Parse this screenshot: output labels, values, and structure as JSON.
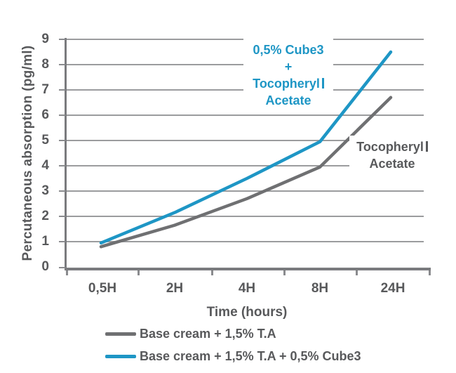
{
  "chart_data": {
    "type": "line",
    "title": "",
    "xlabel": "Time (hours)",
    "ylabel": "Percutaneous absorption (pg/ml)",
    "categories": [
      "0,5H",
      "2H",
      "4H",
      "8H",
      "24H"
    ],
    "yticks": [
      "9",
      "8",
      "7",
      "6",
      "5",
      "4",
      "3",
      "2",
      "1",
      "0"
    ],
    "ylim": [
      0,
      9
    ],
    "grid": true,
    "legend_position": "bottom",
    "series": [
      {
        "id": "ta",
        "name": "Base cream + 1,5% T.A",
        "color": "#6F7072",
        "values": [
          0.8,
          1.65,
          2.7,
          3.95,
          6.7
        ]
      },
      {
        "id": "cube",
        "name": "Base cream + 1,5% T.A + 0,5% Cube3",
        "color": "#1E96C5",
        "values": [
          0.95,
          2.15,
          3.5,
          4.95,
          8.5
        ]
      }
    ],
    "annotations": [
      {
        "id": "cube-annotation",
        "color": "#1E96C5",
        "lines": [
          "0,5% Cube3",
          "+",
          "Tocopheryl",
          "Acetate"
        ]
      },
      {
        "id": "ta-annotation",
        "color": "#58595B",
        "lines": [
          "Tocopheryl",
          "Acetate"
        ]
      }
    ]
  },
  "colors": {
    "text": "#58595B",
    "axis": "#7A7B7E",
    "gridline": "#9B9C9E",
    "background": "#FFFFFF"
  }
}
